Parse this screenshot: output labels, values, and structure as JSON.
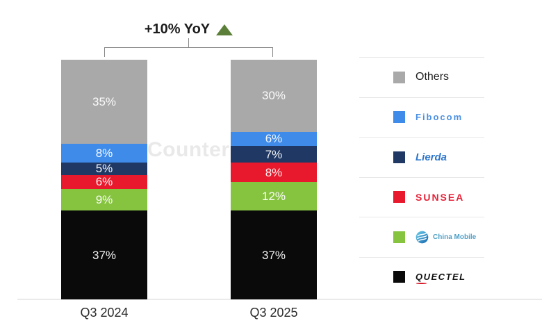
{
  "chart_data": {
    "type": "bar",
    "stacked": true,
    "unit": "%",
    "ylim": [
      0,
      100
    ],
    "legend_position": "right",
    "grid": false,
    "categories": [
      "Q3 2024",
      "Q3 2025"
    ],
    "series": [
      {
        "name": "Quectel",
        "values": [
          37,
          37
        ],
        "color": "#0a0a0a"
      },
      {
        "name": "China Mobile",
        "values": [
          9,
          12
        ],
        "color": "#86c440"
      },
      {
        "name": "Sunsea",
        "values": [
          6,
          8
        ],
        "color": "#e8192c"
      },
      {
        "name": "Lierda",
        "values": [
          5,
          7
        ],
        "color": "#1f3864"
      },
      {
        "name": "Fibocom",
        "values": [
          8,
          6
        ],
        "color": "#3e8bea"
      },
      {
        "name": "Others",
        "values": [
          35,
          30
        ],
        "color": "#a9a9a9"
      }
    ],
    "annotation": "+10% YoY"
  },
  "annotation": {
    "text": "+10% YoY",
    "triangle_color": "#5b7f38"
  },
  "watermark": {
    "text": "Counterpoint"
  },
  "legend": {
    "items": [
      {
        "label": "Others",
        "color": "#a9a9a9",
        "style": "others"
      },
      {
        "label": "Fibocom",
        "color": "#3e8bea",
        "style": "fibocom"
      },
      {
        "label": "Lierda",
        "color": "#1f3864",
        "style": "lierda"
      },
      {
        "label": "SUNSEA",
        "color": "#e8192c",
        "style": "sunsea"
      },
      {
        "label": "China Mobile",
        "color": "#86c440",
        "style": "chinamobile",
        "icon": "china-mobile-globe-icon"
      },
      {
        "label": "QUECTEL",
        "color": "#0a0a0a",
        "style": "quectel"
      }
    ]
  }
}
